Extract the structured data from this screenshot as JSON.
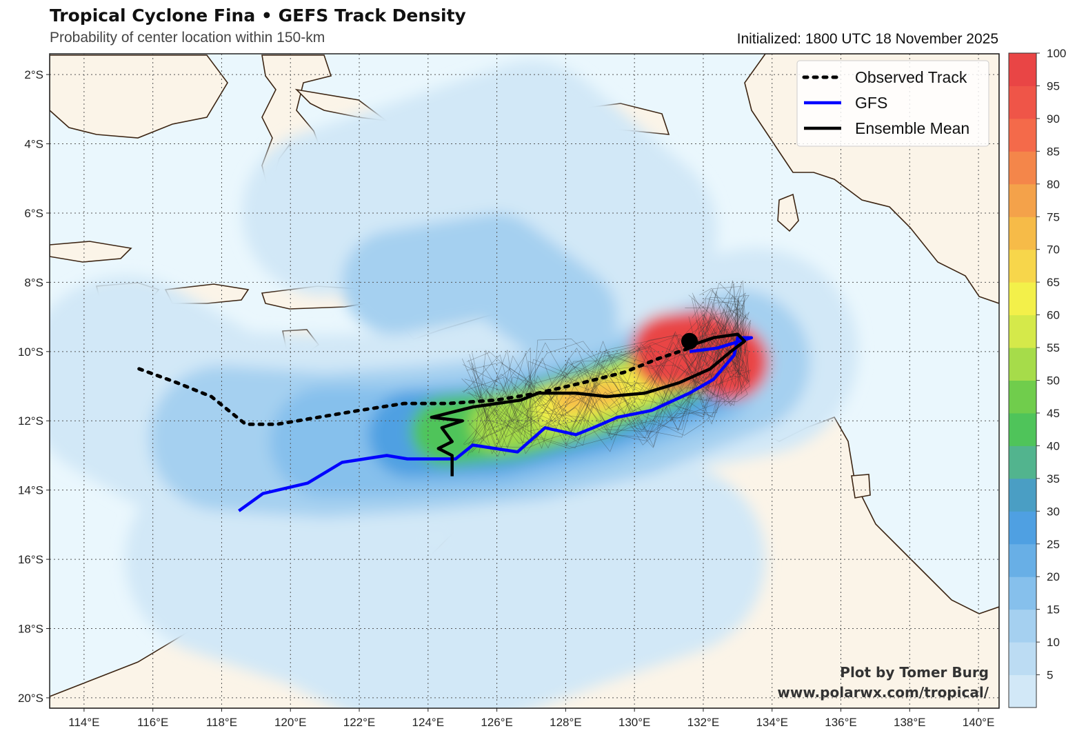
{
  "header": {
    "title": "Tropical Cyclone Fina • GEFS Track Density",
    "subtitle": "Probability of center location within 150-km",
    "initialized": "Initialized: 1800 UTC 18 November 2025"
  },
  "map": {
    "lon_range": [
      113.0,
      140.6
    ],
    "lat_range": [
      -20.3,
      -1.4
    ],
    "lon_ticks": [
      114,
      116,
      118,
      120,
      122,
      124,
      126,
      128,
      130,
      132,
      134,
      136,
      138,
      140
    ],
    "lat_ticks": [
      -2,
      -4,
      -6,
      -8,
      -10,
      -12,
      -14,
      -16,
      -18,
      -20
    ],
    "lon_labels": [
      "114°E",
      "116°E",
      "118°E",
      "120°E",
      "122°E",
      "124°E",
      "126°E",
      "128°E",
      "130°E",
      "132°E",
      "134°E",
      "136°E",
      "138°E",
      "140°E"
    ],
    "lat_labels": [
      "2°S",
      "4°S",
      "6°S",
      "8°S",
      "10°S",
      "12°S",
      "14°S",
      "16°S",
      "18°S",
      "20°S"
    ],
    "grid": true,
    "ocean_color": "#eaf7fd",
    "land_color": "#fbf4e8",
    "coast_color": "#3b2412"
  },
  "legend": {
    "placement": "top-right",
    "items": [
      {
        "label": "Observed Track",
        "color": "#000000",
        "style": "dotted"
      },
      {
        "label": "GFS",
        "color": "#0000ff",
        "style": "solid"
      },
      {
        "label": "Ensemble Mean",
        "color": "#000000",
        "style": "solid"
      }
    ]
  },
  "colorbar": {
    "levels": [
      5,
      10,
      15,
      20,
      25,
      30,
      35,
      40,
      45,
      50,
      55,
      60,
      65,
      70,
      75,
      80,
      85,
      90,
      95,
      100
    ],
    "colors": [
      "#d2e8f7",
      "#bcdcf3",
      "#a5d0f0",
      "#86c0ec",
      "#68afe6",
      "#4fa0e2",
      "#4a9ec4",
      "#52b48e",
      "#4fc45a",
      "#70cd4c",
      "#a6dc4a",
      "#d5e94a",
      "#f3f04a",
      "#f7d64b",
      "#f6bb48",
      "#f4a24a",
      "#f4864a",
      "#f46a4a",
      "#ef5548",
      "#e94545"
    ]
  },
  "chart_data": {
    "type": "map",
    "observed_track": {
      "name": "Observed Track",
      "points": [
        [
          115.6,
          -10.5
        ],
        [
          116.7,
          -10.9
        ],
        [
          117.7,
          -11.3
        ],
        [
          118.2,
          -11.7
        ],
        [
          118.7,
          -12.1
        ],
        [
          119.6,
          -12.1
        ],
        [
          120.8,
          -11.9
        ],
        [
          122.0,
          -11.7
        ],
        [
          123.3,
          -11.5
        ],
        [
          124.6,
          -11.5
        ],
        [
          126.0,
          -11.4
        ],
        [
          127.2,
          -11.2
        ],
        [
          128.5,
          -10.9
        ],
        [
          129.7,
          -10.6
        ],
        [
          130.7,
          -10.2
        ],
        [
          131.6,
          -9.9
        ]
      ]
    },
    "gfs_track": {
      "name": "GFS",
      "points": [
        [
          118.5,
          -14.6
        ],
        [
          119.2,
          -14.1
        ],
        [
          120.5,
          -13.8
        ],
        [
          121.5,
          -13.2
        ],
        [
          122.8,
          -13.0
        ],
        [
          123.4,
          -13.1
        ],
        [
          124.0,
          -13.1
        ],
        [
          124.8,
          -13.1
        ],
        [
          125.3,
          -12.7
        ],
        [
          126.6,
          -12.9
        ],
        [
          127.4,
          -12.2
        ],
        [
          128.3,
          -12.4
        ],
        [
          128.8,
          -12.2
        ],
        [
          129.5,
          -11.9
        ],
        [
          130.5,
          -11.7
        ],
        [
          131.6,
          -11.2
        ],
        [
          132.3,
          -10.8
        ],
        [
          132.9,
          -10.1
        ],
        [
          133.0,
          -9.6
        ],
        [
          133.4,
          -9.6
        ],
        [
          132.4,
          -9.9
        ],
        [
          131.6,
          -10.0
        ]
      ]
    },
    "ensemble_mean": {
      "name": "Ensemble Mean",
      "points": [
        [
          124.7,
          -13.6
        ],
        [
          124.7,
          -13.0
        ],
        [
          124.3,
          -12.8
        ],
        [
          124.7,
          -12.6
        ],
        [
          124.4,
          -12.2
        ],
        [
          125.0,
          -12.0
        ],
        [
          124.1,
          -11.9
        ],
        [
          124.5,
          -11.8
        ],
        [
          125.3,
          -11.6
        ],
        [
          126.0,
          -11.5
        ],
        [
          126.7,
          -11.4
        ],
        [
          127.2,
          -11.2
        ],
        [
          128.3,
          -11.2
        ],
        [
          129.2,
          -11.3
        ],
        [
          130.3,
          -11.2
        ],
        [
          131.3,
          -10.9
        ],
        [
          132.2,
          -10.5
        ],
        [
          132.8,
          -10.0
        ],
        [
          133.2,
          -9.7
        ],
        [
          133.0,
          -9.5
        ],
        [
          132.3,
          -9.6
        ],
        [
          131.7,
          -9.8
        ]
      ],
      "current_position": [
        131.6,
        -9.7
      ]
    },
    "density_peak": {
      "lon": 131.6,
      "lat": -9.9,
      "max_probability": 100
    }
  },
  "credit": {
    "line1": "Plot by Tomer Burg",
    "line2": "www.polarwx.com/tropical/"
  }
}
